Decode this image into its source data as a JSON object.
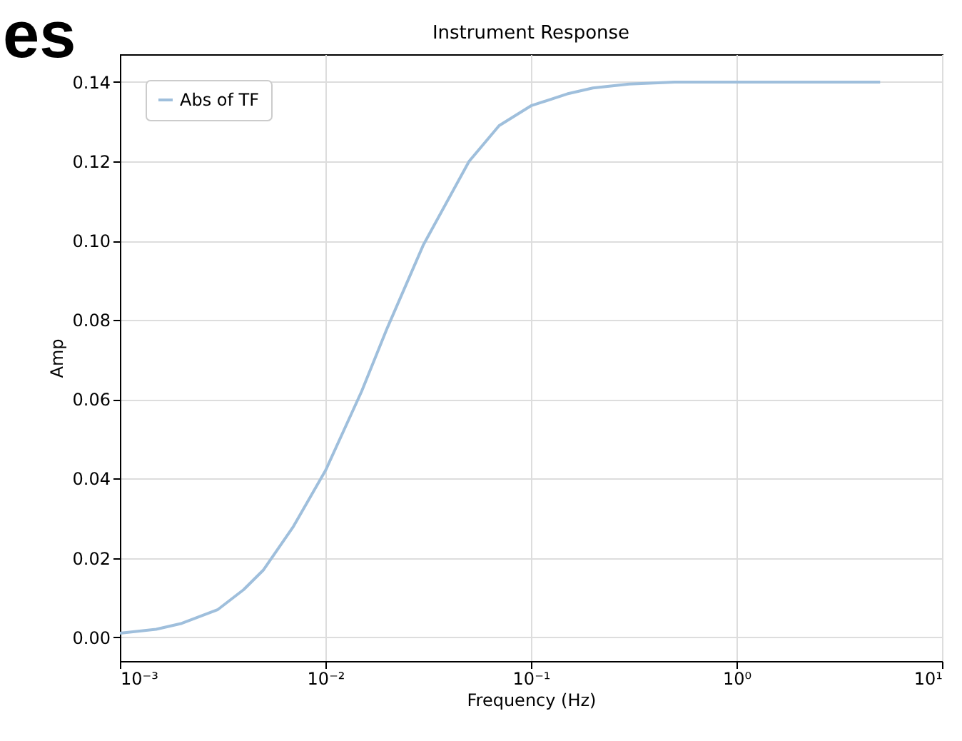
{
  "chart_data": {
    "type": "line",
    "title": "Instrument Response",
    "xlabel": "Frequency (Hz)",
    "ylabel": "Amp",
    "annotations": [
      "es"
    ],
    "log": "x",
    "grid": true,
    "legend": "top left",
    "line_style": "solid",
    "marker": "none",
    "xlim": [
      0.001,
      10
    ],
    "ylim": [
      -0.006,
      0.147
    ],
    "xticks": [
      {
        "value": 0.001,
        "label": "10⁻³"
      },
      {
        "value": 0.01,
        "label": "10⁻²"
      },
      {
        "value": 0.1,
        "label": "10⁻¹"
      },
      {
        "value": 1,
        "label": "10⁰"
      },
      {
        "value": 10,
        "label": "10¹"
      }
    ],
    "yticks": [
      {
        "value": 0.0,
        "label": "0.00"
      },
      {
        "value": 0.02,
        "label": "0.02"
      },
      {
        "value": 0.04,
        "label": "0.04"
      },
      {
        "value": 0.06,
        "label": "0.06"
      },
      {
        "value": 0.08,
        "label": "0.08"
      },
      {
        "value": 0.1,
        "label": "0.10"
      },
      {
        "value": 0.12,
        "label": "0.12"
      },
      {
        "value": 0.14,
        "label": "0.14"
      }
    ],
    "x": [
      0.001,
      0.0015,
      0.002,
      0.003,
      0.004,
      0.005,
      0.007,
      0.01,
      0.015,
      0.02,
      0.03,
      0.05,
      0.07,
      0.1,
      0.15,
      0.2,
      0.3,
      0.5,
      1,
      2,
      5
    ],
    "series": [
      {
        "name": "Abs of TF",
        "color": "#9fbfdc",
        "values": [
          0.001,
          0.002,
          0.0035,
          0.007,
          0.012,
          0.017,
          0.028,
          0.042,
          0.062,
          0.078,
          0.099,
          0.12,
          0.129,
          0.134,
          0.137,
          0.1385,
          0.1395,
          0.14,
          0.14,
          0.14,
          0.14
        ]
      }
    ]
  }
}
